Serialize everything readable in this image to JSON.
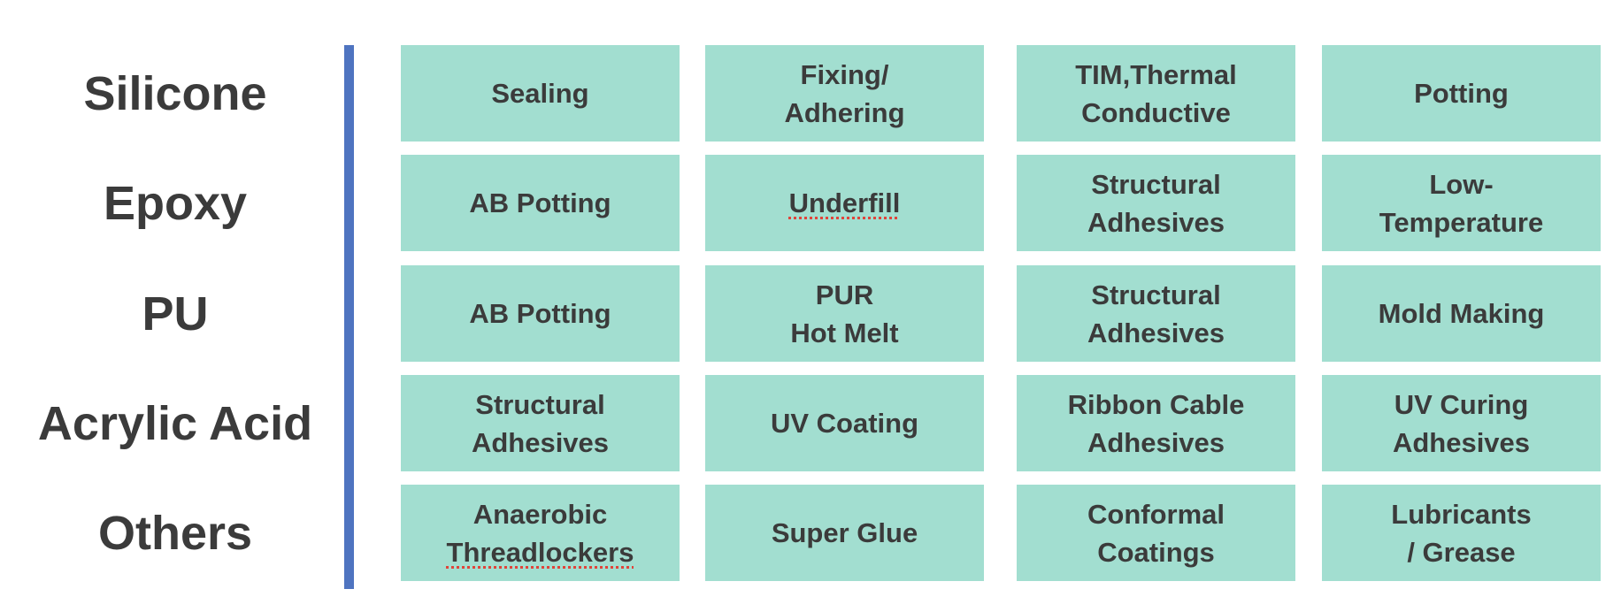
{
  "colors": {
    "cell_fill": "#a2ded0",
    "divider": "#4f74c0",
    "text": "#3b3b3b",
    "spellcheck_underline": "#e0443a"
  },
  "rows": [
    {
      "label": "Silicone",
      "cells": [
        {
          "text": "Sealing"
        },
        {
          "text": "Fixing/\nAdhering"
        },
        {
          "text": "TIM,Thermal\nConductive"
        },
        {
          "text": "Potting"
        }
      ]
    },
    {
      "label": "Epoxy",
      "cells": [
        {
          "text": "AB Potting"
        },
        {
          "text": "Underfill",
          "spellcheck": true
        },
        {
          "text": "Structural\nAdhesives"
        },
        {
          "text": "Low-\nTemperature"
        }
      ]
    },
    {
      "label": "PU",
      "cells": [
        {
          "text": "AB Potting"
        },
        {
          "text": "PUR\nHot Melt"
        },
        {
          "text": "Structural\nAdhesives"
        },
        {
          "text": "Mold Making"
        }
      ]
    },
    {
      "label": "Acrylic Acid",
      "cells": [
        {
          "text": "Structural\nAdhesives"
        },
        {
          "text": "UV Coating"
        },
        {
          "text": "Ribbon Cable\nAdhesives"
        },
        {
          "text": "UV Curing\nAdhesives"
        }
      ]
    },
    {
      "label": "Others",
      "cells": [
        {
          "text": "Anaerobic\nThreadlockers",
          "spellcheck": true
        },
        {
          "text": "Super Glue"
        },
        {
          "text": "Conformal\nCoatings"
        },
        {
          "text": "Lubricants\n/ Grease"
        }
      ]
    }
  ]
}
